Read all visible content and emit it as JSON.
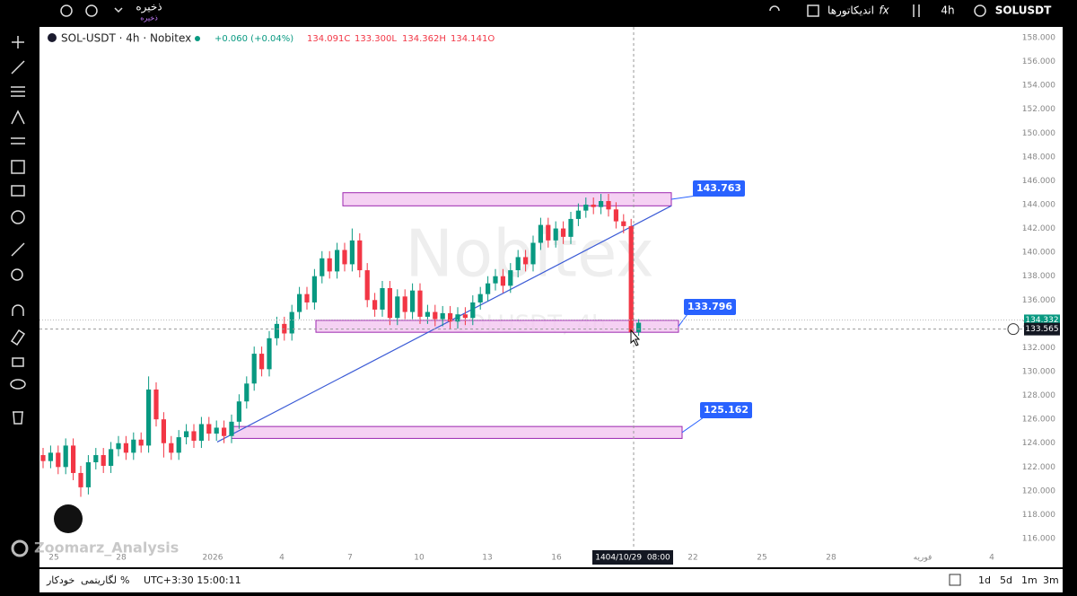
{
  "toolbar": {
    "save": "ذخیره",
    "save_sub": "ذخیره",
    "indicators": "اندیکاتورها",
    "interval": "4h",
    "symbol": "SOLUSDT"
  },
  "chart_data": {
    "type": "candlestick",
    "title": "SOL-USDT · 4h · Nobitex",
    "change": "+0.060 (+0.04%)",
    "ohlc": [
      "134.091C",
      "133.300L",
      "134.362H",
      "134.141O"
    ],
    "watermark": "Nobitex",
    "watermark_symbol": "SOLUSDT, 4h",
    "credit": "Zoomarz_Analysis",
    "up_color": "#089981",
    "down_color": "#f23645",
    "ylim": [
      115.1,
      158.9
    ],
    "yticks": [
      {
        "value": 158,
        "label": "158.000"
      },
      {
        "value": 156,
        "label": "156.000"
      },
      {
        "value": 154,
        "label": "154.000"
      },
      {
        "value": 152,
        "label": "152.000"
      },
      {
        "value": 150,
        "label": "150.000"
      },
      {
        "value": 148,
        "label": "148.000"
      },
      {
        "value": 146,
        "label": "146.000"
      },
      {
        "value": 144,
        "label": "144.000"
      },
      {
        "value": 142,
        "label": "142.000"
      },
      {
        "value": 140,
        "label": "140.000"
      },
      {
        "value": 138,
        "label": "138.000"
      },
      {
        "value": 136,
        "label": "136.000"
      },
      {
        "value": 134,
        "label": "134.000"
      },
      {
        "value": 132,
        "label": "132.000"
      },
      {
        "value": 130,
        "label": "130.000"
      },
      {
        "value": 128,
        "label": "128.000"
      },
      {
        "value": 126,
        "label": "126.000"
      },
      {
        "value": 124,
        "label": "124.000"
      },
      {
        "value": 122,
        "label": "122.000"
      },
      {
        "value": 120,
        "label": "120.000"
      },
      {
        "value": 118,
        "label": "118.000"
      },
      {
        "value": 116,
        "label": "116.000"
      }
    ],
    "time_labels": [
      "25",
      "28",
      "2026",
      "4",
      "7",
      "10",
      "13",
      "16",
      "22",
      "25",
      "28",
      "فوریه",
      "4"
    ],
    "crosshair_time": "1404/10/29  08:00",
    "candles": [
      [
        123.0,
        123.6,
        121.9,
        122.5
      ],
      [
        122.5,
        123.8,
        121.9,
        123.2
      ],
      [
        123.2,
        123.8,
        121.4,
        122.0
      ],
      [
        122.0,
        124.4,
        121.4,
        123.8
      ],
      [
        123.8,
        124.4,
        120.9,
        121.5
      ],
      [
        121.5,
        122.1,
        119.5,
        120.3
      ],
      [
        120.3,
        123.0,
        119.7,
        122.4
      ],
      [
        122.4,
        123.6,
        121.8,
        123.0
      ],
      [
        123.0,
        123.6,
        121.5,
        122.1
      ],
      [
        122.1,
        124.1,
        121.5,
        123.5
      ],
      [
        123.5,
        124.6,
        122.9,
        124.0
      ],
      [
        124.0,
        124.6,
        122.6,
        123.2
      ],
      [
        123.2,
        124.9,
        122.6,
        124.3
      ],
      [
        124.3,
        124.9,
        123.2,
        123.8
      ],
      [
        123.8,
        129.6,
        123.2,
        128.5
      ],
      [
        128.5,
        129.1,
        125.4,
        126.0
      ],
      [
        126.0,
        126.6,
        122.8,
        124.0
      ],
      [
        124.0,
        124.6,
        122.6,
        123.2
      ],
      [
        123.2,
        125.1,
        122.6,
        124.5
      ],
      [
        124.5,
        125.6,
        123.9,
        125.0
      ],
      [
        125.0,
        125.6,
        123.6,
        124.2
      ],
      [
        124.2,
        126.2,
        123.6,
        125.6
      ],
      [
        125.6,
        126.2,
        124.2,
        124.8
      ],
      [
        124.8,
        125.9,
        124.2,
        125.3
      ],
      [
        125.3,
        125.9,
        124.0,
        124.6
      ],
      [
        124.6,
        126.4,
        124.0,
        125.8
      ],
      [
        125.8,
        128.1,
        125.2,
        127.5
      ],
      [
        127.5,
        129.6,
        126.9,
        129.0
      ],
      [
        129.0,
        132.1,
        128.4,
        131.5
      ],
      [
        131.5,
        132.1,
        129.6,
        130.2
      ],
      [
        130.2,
        133.4,
        129.6,
        132.8
      ],
      [
        132.8,
        134.6,
        132.2,
        134.0
      ],
      [
        134.0,
        134.6,
        132.6,
        133.2
      ],
      [
        133.2,
        135.6,
        132.6,
        135.0
      ],
      [
        135.0,
        137.1,
        134.4,
        136.5
      ],
      [
        136.5,
        137.1,
        135.2,
        135.8
      ],
      [
        135.8,
        138.6,
        135.2,
        138.0
      ],
      [
        138.0,
        140.1,
        137.4,
        139.5
      ],
      [
        139.5,
        140.1,
        137.8,
        138.4
      ],
      [
        138.4,
        140.8,
        137.8,
        140.2
      ],
      [
        140.2,
        140.8,
        138.4,
        139.0
      ],
      [
        139.0,
        142.0,
        138.4,
        141.0
      ],
      [
        141.0,
        141.6,
        137.9,
        138.5
      ],
      [
        138.5,
        139.1,
        135.4,
        136.0
      ],
      [
        136.0,
        136.6,
        134.6,
        135.2
      ],
      [
        135.2,
        137.6,
        134.6,
        137.0
      ],
      [
        137.0,
        137.6,
        133.9,
        134.5
      ],
      [
        134.5,
        136.9,
        133.9,
        136.3
      ],
      [
        136.3,
        136.9,
        134.4,
        135.0
      ],
      [
        135.0,
        137.4,
        134.4,
        136.8
      ],
      [
        136.8,
        137.4,
        134.0,
        134.6
      ],
      [
        134.6,
        135.6,
        134.0,
        135.0
      ],
      [
        135.0,
        135.6,
        133.8,
        134.4
      ],
      [
        134.4,
        135.5,
        133.8,
        134.9
      ],
      [
        134.9,
        135.5,
        133.6,
        134.2
      ],
      [
        134.2,
        135.4,
        133.6,
        134.8
      ],
      [
        134.8,
        135.4,
        133.9,
        134.5
      ],
      [
        134.5,
        136.4,
        133.9,
        135.8
      ],
      [
        135.8,
        137.1,
        135.2,
        136.5
      ],
      [
        136.5,
        138.0,
        135.9,
        137.4
      ],
      [
        137.4,
        138.6,
        136.8,
        138.0
      ],
      [
        138.0,
        138.6,
        136.6,
        137.2
      ],
      [
        137.2,
        139.1,
        136.6,
        138.5
      ],
      [
        138.5,
        140.2,
        137.9,
        139.6
      ],
      [
        139.6,
        140.2,
        138.4,
        139.0
      ],
      [
        139.0,
        141.4,
        138.4,
        140.8
      ],
      [
        140.8,
        142.9,
        140.2,
        142.3
      ],
      [
        142.3,
        142.9,
        140.4,
        141.0
      ],
      [
        141.0,
        142.6,
        140.4,
        142.0
      ],
      [
        142.0,
        142.6,
        140.7,
        141.3
      ],
      [
        141.3,
        143.4,
        140.7,
        142.8
      ],
      [
        142.8,
        144.1,
        142.2,
        143.5
      ],
      [
        143.5,
        144.6,
        142.9,
        144.0
      ],
      [
        144.0,
        144.6,
        143.2,
        143.8
      ],
      [
        143.8,
        144.9,
        143.2,
        144.3
      ],
      [
        144.3,
        144.9,
        143.0,
        143.6
      ],
      [
        143.6,
        144.2,
        142.0,
        142.6
      ],
      [
        142.6,
        143.2,
        141.6,
        142.2
      ],
      [
        142.2,
        142.8,
        133.0,
        133.3
      ],
      [
        133.3,
        134.4,
        133.0,
        134.1
      ]
    ],
    "zones": [
      {
        "top": 145.0,
        "bottom": 143.9,
        "label": 143.763
      },
      {
        "top": 134.3,
        "bottom": 133.3,
        "label": 133.796
      },
      {
        "top": 125.4,
        "bottom": 124.4,
        "label": 125.162
      }
    ],
    "trendline": {
      "from": 124.1,
      "to": 143.9
    },
    "price_tags": [
      134.332,
      133.565
    ]
  },
  "bottom_bar": {
    "auto": "خودکار",
    "log": "لگاریتمی",
    "percent": "%",
    "clock": "UTC+3:30 15:00:11",
    "ranges": [
      "1d",
      "5d",
      "1m",
      "3m"
    ]
  }
}
